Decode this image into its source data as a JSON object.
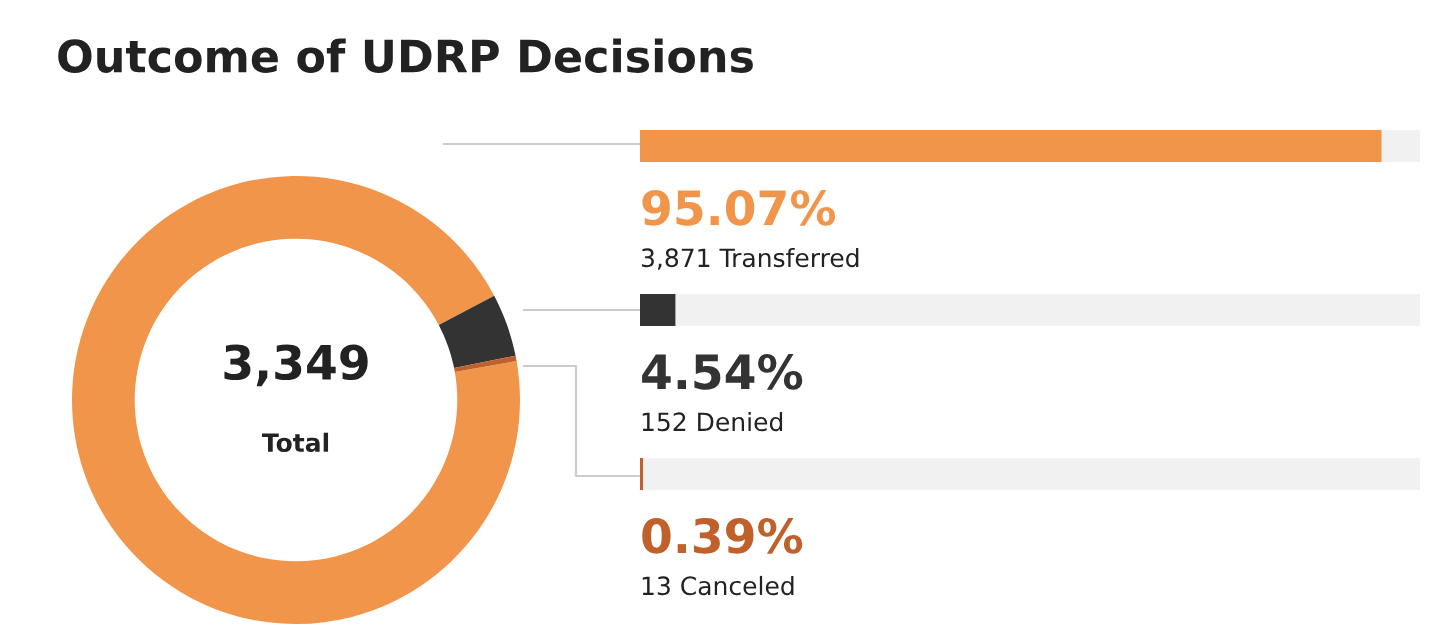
{
  "chart_data": {
    "type": "donut",
    "title": "Outcome of UDRP Decisions",
    "categories": [
      "3,871 Transferred",
      "152 Denied",
      "13 Canceled"
    ],
    "values": [
      95.07,
      4.54,
      0.39
    ],
    "colors": [
      "#f0954a",
      "#333333",
      "#c0612b"
    ],
    "value_labels": [
      "95.07%",
      "4.54%",
      "0.39%"
    ],
    "annotations": [
      "3,349",
      "Total"
    ]
  }
}
